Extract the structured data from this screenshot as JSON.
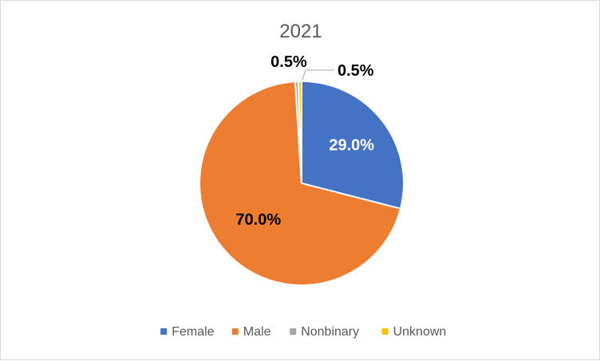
{
  "chart_data": {
    "type": "pie",
    "title": "2021",
    "categories": [
      "Female",
      "Male",
      "Nonbinary",
      "Unknown"
    ],
    "values": [
      29.0,
      70.0,
      0.5,
      0.5
    ],
    "labels": [
      "29.0%",
      "70.0%",
      "0.5%",
      "0.5%"
    ],
    "colors": [
      "#4472C4",
      "#ED7D31",
      "#A5A5A5",
      "#FFC000"
    ],
    "legend_position": "bottom"
  }
}
